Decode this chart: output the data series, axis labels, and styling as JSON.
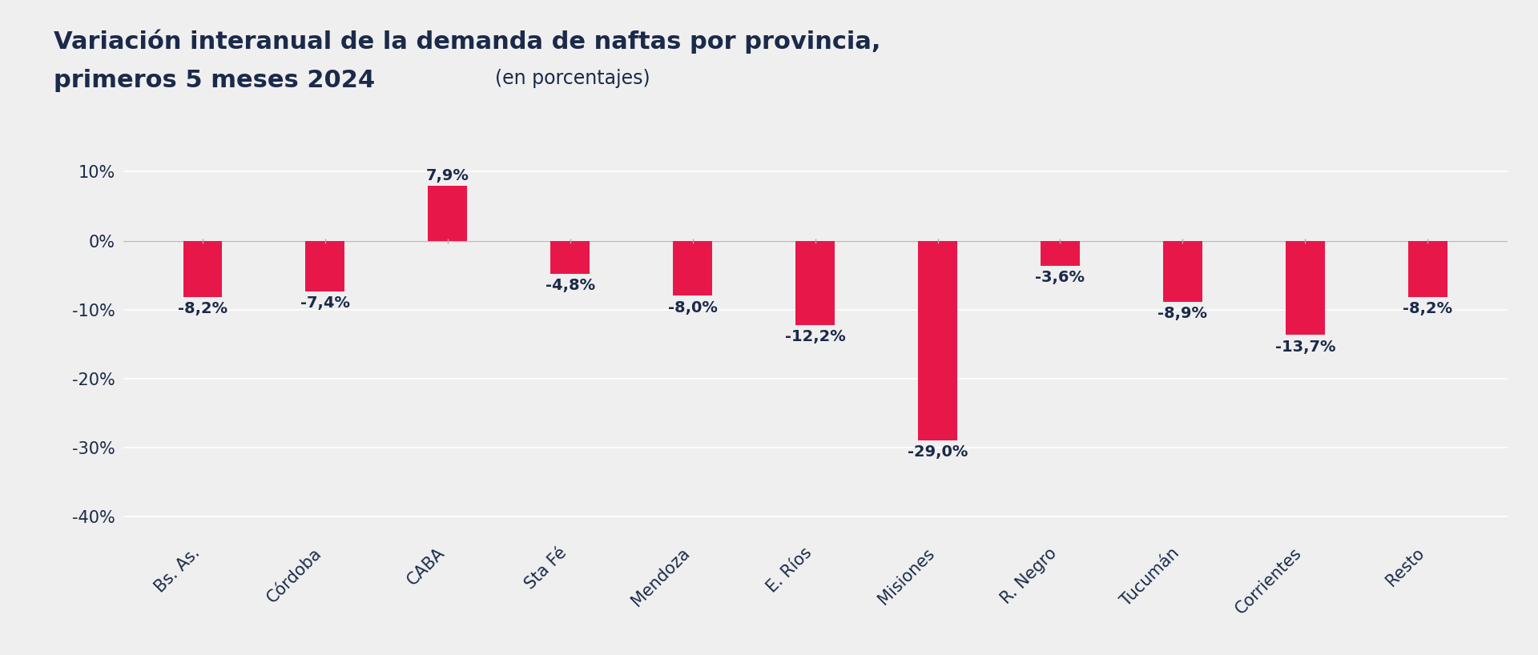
{
  "categories": [
    "Bs. As.",
    "Córdoba",
    "CABA",
    "Sta Fé",
    "Mendoza",
    "E. Ríos",
    "Misiones",
    "R. Negro",
    "Tucumán",
    "Corrientes",
    "Resto"
  ],
  "values": [
    -8.2,
    -7.4,
    7.9,
    -4.8,
    -8.0,
    -12.2,
    -29.0,
    -3.6,
    -8.9,
    -13.7,
    -8.2
  ],
  "value_labels": [
    "-8,2%",
    "-7,4%",
    "7,9%",
    "-4,8%",
    "-8,0%",
    "-12,2%",
    "-29,0%",
    "-3,6%",
    "-8,9%",
    "-13,7%",
    "-8,2%"
  ],
  "bar_color": "#E8174A",
  "bar_width": 0.32,
  "ylim": [
    -43,
    14
  ],
  "yticks": [
    10,
    0,
    -10,
    -20,
    -30,
    -40
  ],
  "ytick_labels": [
    "10%",
    "0%",
    "-10%",
    "-20%",
    "-30%",
    "-40%"
  ],
  "background_color": "#EFEFEF",
  "title_color": "#1B2A4A",
  "label_color": "#1B2A4A",
  "grid_color": "#FFFFFF",
  "zeroline_color": "#BBBBBB",
  "title_bold": "Variación interanual de la demanda de naftas por provincia,\nprimeros 5 meses 2024",
  "title_normal_suffix": " (en porcentajes)",
  "title_fontsize": 22,
  "subtitle_fontsize": 17,
  "value_fontsize": 14,
  "ytick_fontsize": 15,
  "xtick_fontsize": 15
}
